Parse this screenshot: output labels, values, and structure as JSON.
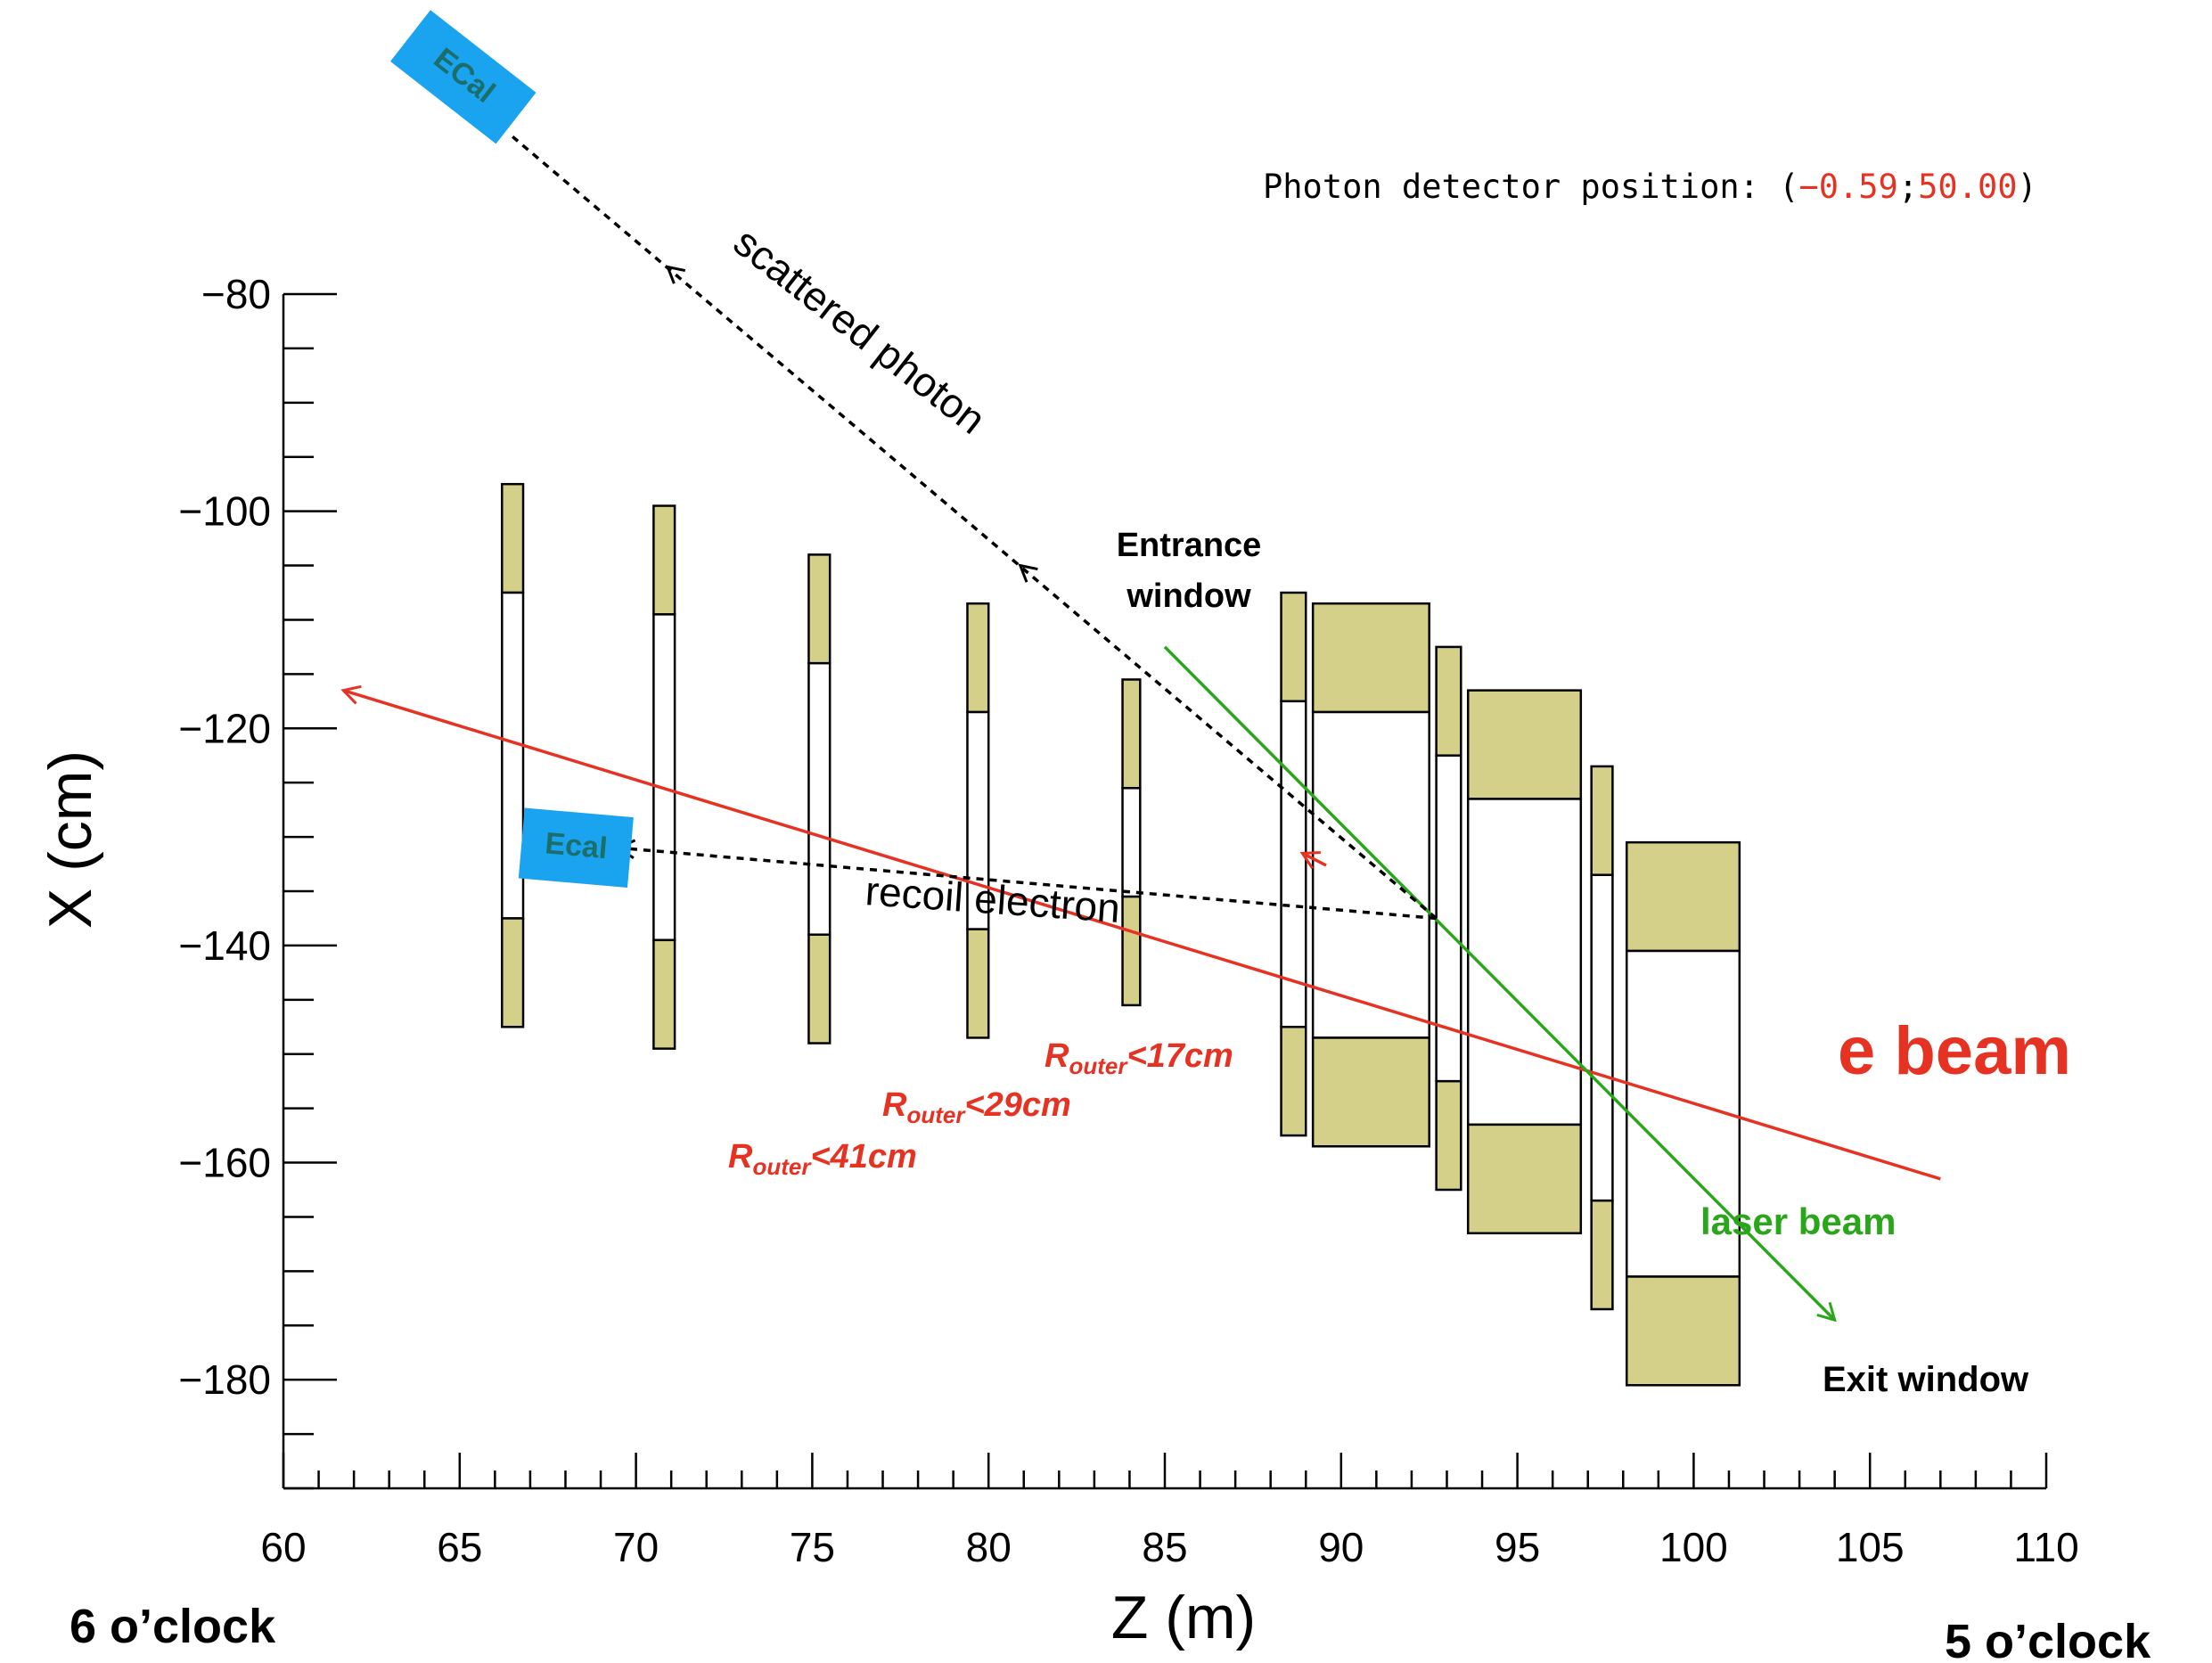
{
  "chart_data": {
    "type": "diagram",
    "xlabel": "Z (m)",
    "ylabel": "X (cm)",
    "xlim": [
      60,
      110
    ],
    "ylim": [
      -190,
      -80
    ],
    "x_ticks": [
      "60",
      "65",
      "70",
      "75",
      "80",
      "85",
      "90",
      "95",
      "100",
      "105",
      "110"
    ],
    "y_ticks": [
      "−80",
      "−100",
      "−120",
      "−140",
      "−160",
      "−180"
    ],
    "x_tick_values": [
      60,
      65,
      70,
      75,
      80,
      85,
      90,
      95,
      100,
      105,
      110
    ],
    "y_tick_values": [
      -80,
      -100,
      -120,
      -140,
      -160,
      -180
    ],
    "colors": {
      "yoke": "#d4d08a",
      "ecal": "#1aa3ee",
      "ecal_text": "#1b6e6a",
      "e_beam": "#e63222",
      "laser": "#2aa61a",
      "dotted": "#000000",
      "readout_value": "#e63222"
    },
    "magnets": [
      {
        "z0": 66.2,
        "z1": 66.8,
        "top": -97.5,
        "bottom": -147.5,
        "gap_top": -107.5,
        "gap_bottom": -137.5
      },
      {
        "z0": 70.5,
        "z1": 71.1,
        "top": -99.5,
        "bottom": -149.5,
        "gap_top": -109.5,
        "gap_bottom": -139.5
      },
      {
        "z0": 74.9,
        "z1": 75.5,
        "top": -104.0,
        "bottom": -149.0,
        "gap_top": -114.0,
        "gap_bottom": -139.0
      },
      {
        "z0": 79.4,
        "z1": 80.0,
        "top": -108.5,
        "bottom": -148.5,
        "gap_top": -118.5,
        "gap_bottom": -138.5
      },
      {
        "z0": 83.8,
        "z1": 84.3,
        "top": -115.5,
        "bottom": -145.5,
        "gap_top": -125.5,
        "gap_bottom": -135.5
      },
      {
        "z0": 88.3,
        "z1": 89.0,
        "top": -107.5,
        "bottom": -157.5,
        "gap_top": -117.5,
        "gap_bottom": -147.5
      },
      {
        "z0": 89.2,
        "z1": 92.5,
        "top": -108.5,
        "bottom": -158.5,
        "gap_top": -118.5,
        "gap_bottom": -148.5
      },
      {
        "z0": 92.7,
        "z1": 93.4,
        "top": -112.5,
        "bottom": -162.5,
        "gap_top": -122.5,
        "gap_bottom": -152.5
      },
      {
        "z0": 93.6,
        "z1": 96.8,
        "top": -116.5,
        "bottom": -166.5,
        "gap_top": -126.5,
        "gap_bottom": -156.5
      },
      {
        "z0": 97.1,
        "z1": 97.7,
        "top": -123.5,
        "bottom": -173.5,
        "gap_top": -133.5,
        "gap_bottom": -163.5
      },
      {
        "z0": 98.1,
        "z1": 101.3,
        "top": -130.5,
        "bottom": -180.5,
        "gap_top": -140.5,
        "gap_bottom": -170.5
      }
    ],
    "e_beam": {
      "from": [
        107.0,
        -161.5
      ],
      "to": [
        61.7,
        -116.5
      ],
      "arrow_mid": [
        88.9,
        -131.5
      ]
    },
    "laser_beam": {
      "from": [
        85.0,
        -112.5
      ],
      "to": [
        104.0,
        -174.5
      ]
    },
    "scattered_photon": {
      "from": [
        92.7,
        -137.5
      ],
      "to": [
        66.5,
        -65.5
      ],
      "arrow_marks": [
        [
          80.9,
          -105.0
        ],
        [
          70.9,
          -77.5
        ]
      ]
    },
    "recoil_electron": {
      "from": [
        92.7,
        -137.5
      ],
      "to": [
        69.5,
        -131.0
      ]
    },
    "ecal_top": {
      "center": [
        65.1,
        -60.0
      ],
      "width": 3.8,
      "height": 6.0,
      "angle": 38,
      "label": "ECal"
    },
    "ecal_mid": {
      "center": [
        68.3,
        -131.0
      ],
      "width": 3.1,
      "height": 6.5,
      "angle": 5,
      "label": "Ecal"
    }
  },
  "annotations": {
    "readout_prefix": "Photon detector position: (",
    "readout_x": "−0.59",
    "readout_sep": ";",
    "readout_y": "50.00",
    "readout_suffix": ")",
    "scattered_photon": "scattered photon",
    "recoil_electron": "recoil electron",
    "entrance_window_1": "Entrance",
    "entrance_window_2": "window",
    "e_beam": "e beam",
    "laser_beam": "laser beam",
    "exit_window": "Exit window",
    "r17_main": "R",
    "r17_sub": "outer",
    "r17_rest": "<17cm",
    "r29_main": "R",
    "r29_sub": "outer",
    "r29_rest": "<29cm",
    "r41_main": "R",
    "r41_sub": "outer",
    "r41_rest": "<41cm",
    "six_oclock": "6 o’clock",
    "five_oclock": "5 o’clock"
  }
}
